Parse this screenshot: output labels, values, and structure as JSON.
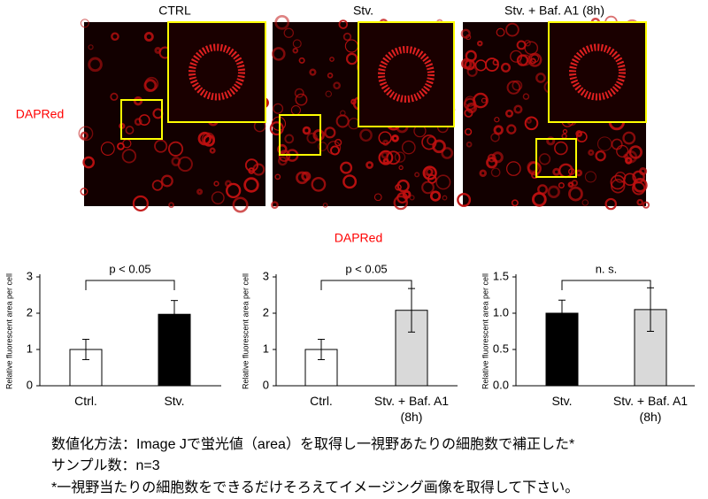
{
  "panels": {
    "titles": [
      "CTRL",
      "Stv.",
      "Stv. + Baf. A1 (8h)"
    ],
    "row_label": "DAPRed"
  },
  "section_label": "DAPRed",
  "chart_data": [
    {
      "type": "bar",
      "ylabel": "Relative fluorescent area per cell",
      "categories": [
        "Ctrl.",
        "Stv."
      ],
      "values": [
        1.0,
        1.97
      ],
      "errors": [
        0.28,
        0.38
      ],
      "colors": [
        "#ffffff",
        "#000000"
      ],
      "ylim": [
        0,
        3
      ],
      "yticks": [
        0,
        1,
        2,
        3
      ],
      "annotation": "p < 0.05"
    },
    {
      "type": "bar",
      "ylabel": "Relative fluorescent area per cell",
      "categories": [
        "Ctrl.",
        "Stv. + Baf. A1 (8h)"
      ],
      "values": [
        1.0,
        2.08
      ],
      "errors": [
        0.28,
        0.6
      ],
      "colors": [
        "#ffffff",
        "#d9d9d9"
      ],
      "ylim": [
        0,
        3
      ],
      "yticks": [
        0,
        1,
        2,
        3
      ],
      "annotation": "p < 0.05"
    },
    {
      "type": "bar",
      "ylabel": "Relative fluorescent area per cell",
      "categories": [
        "Stv.",
        "Stv. + Baf. A1 (8h)"
      ],
      "values": [
        1.0,
        1.05
      ],
      "errors": [
        0.18,
        0.3
      ],
      "colors": [
        "#000000",
        "#d9d9d9"
      ],
      "ylim": [
        0,
        1.5
      ],
      "yticks": [
        {
          "value": 0,
          "label": "0.0"
        },
        0.5,
        {
          "value": 1,
          "label": "1.0"
        },
        1.5
      ],
      "annotation": "n. s."
    }
  ],
  "notes": [
    "数値化方法：Image Jで蛍光値（area）を取得し一視野あたりの細胞数で補正した*",
    "サンプル数：n=3",
    "*一視野当たりの細胞数をできるだけそろえてイメージング画像を取得して下さい。"
  ]
}
